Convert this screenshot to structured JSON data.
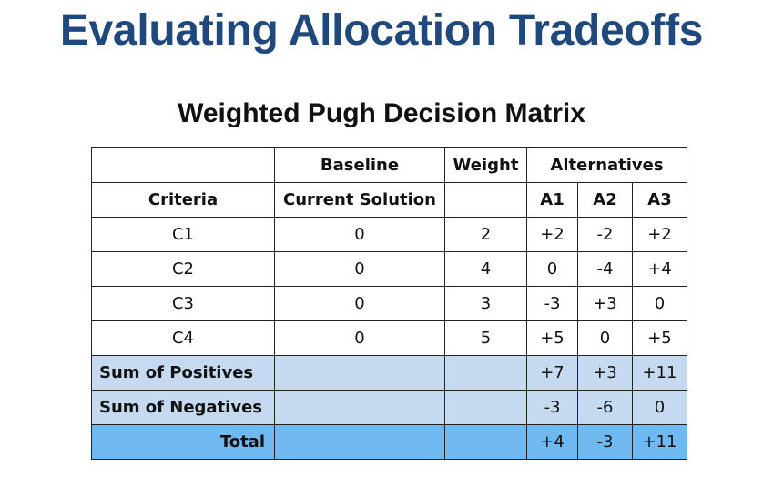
{
  "slide": {
    "title": "Evaluating Allocation Tradeoffs",
    "matrix_title": "Weighted Pugh Decision Matrix"
  },
  "table": {
    "header_row1": {
      "baseline": "Baseline",
      "weight": "Weight",
      "alternatives": "Alternatives"
    },
    "header_row2": {
      "criteria": "Criteria",
      "current_solution": "Current Solution",
      "a1": "A1",
      "a2": "A2",
      "a3": "A3"
    },
    "rows": [
      {
        "criteria": "C1",
        "baseline": "0",
        "weight": "2",
        "a1": "+2",
        "a2": "-2",
        "a3": "+2"
      },
      {
        "criteria": "C2",
        "baseline": "0",
        "weight": "4",
        "a1": "0",
        "a2": "-4",
        "a3": "+4"
      },
      {
        "criteria": "C3",
        "baseline": "0",
        "weight": "3",
        "a1": "-3",
        "a2": "+3",
        "a3": "0"
      },
      {
        "criteria": "C4",
        "baseline": "0",
        "weight": "5",
        "a1": "+5",
        "a2": "0",
        "a3": "+5"
      }
    ],
    "sum_positives": {
      "label": "Sum of Positives",
      "a1": "+7",
      "a2": "+3",
      "a3": "+11"
    },
    "sum_negatives": {
      "label": "Sum of Negatives",
      "a1": "-3",
      "a2": "-6",
      "a3": "0"
    },
    "total": {
      "label": "Total",
      "a1": "+4",
      "a2": "-3",
      "a3": "+11"
    }
  },
  "colors": {
    "title": "#1f497d",
    "sum_rows": "#c5d9f1",
    "total_row": "#6fb9f0"
  }
}
